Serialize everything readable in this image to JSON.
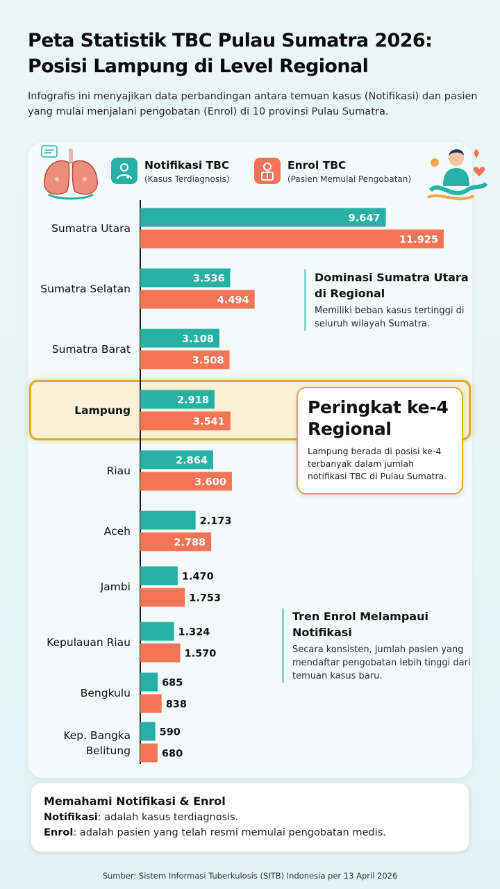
{
  "title": "Peta Statistik TBC Pulau Sumatra 2026: Posisi Lampung di Level Regional",
  "subtitle": "Infografis ini menyajikan data perbandingan antara temuan kasus (Notifikasi) dan pasien yang mulai menjalani pengobatan (Enrol) di 10 provinsi Pulau Sumatra.",
  "legend": {
    "notif_title": "Notifikasi TBC",
    "notif_sub": "(Kasus Terdiagnosis)",
    "enrol_title": "Enrol TBC",
    "enrol_sub": "(Pasien Memulai Pengobatan)"
  },
  "colors": {
    "notifikasi": "#27b1a4",
    "enrol": "#f47555",
    "highlight": "#d9a931"
  },
  "chart_data": {
    "type": "bar",
    "orientation": "horizontal",
    "categories": [
      "Sumatra Utara",
      "Sumatra Selatan",
      "Sumatra Barat",
      "Lampung",
      "Riau",
      "Aceh",
      "Jambi",
      "Kepulauan Riau",
      "Bengkulu",
      "Kep. Bangka Belitung"
    ],
    "series": [
      {
        "name": "Notifikasi TBC",
        "values": [
          9647,
          3536,
          3108,
          2918,
          2864,
          2173,
          1470,
          1324,
          685,
          590
        ],
        "labels": [
          "9.647",
          "3.536",
          "3.108",
          "2.918",
          "2.864",
          "2.173",
          "1.470",
          "1.324",
          "685",
          "590"
        ]
      },
      {
        "name": "Enrol TBC",
        "values": [
          11925,
          4494,
          3508,
          3541,
          3600,
          2788,
          1753,
          1570,
          838,
          680
        ],
        "labels": [
          "11.925",
          "4.494",
          "3.508",
          "3.541",
          "3.600",
          "2.788",
          "1.753",
          "1.570",
          "838",
          "680"
        ]
      }
    ],
    "highlight_category": "Lampung",
    "xlim": [
      0,
      11925
    ],
    "grid": false
  },
  "notes": {
    "dominasi_title": "Dominasi Sumatra Utara di Regional",
    "dominasi_text": "Memiliki beban kasus tertinggi di seluruh wilayah Sumatra.",
    "tren_title": "Tren Enrol Melampaui Notifikasi",
    "tren_text": "Secara konsisten, jumlah pasien yang mendaftar pengobatan lebih tinggi dari temuan kasus baru."
  },
  "rank": {
    "title": "Peringkat ke-4 Regional",
    "text": "Lampung berada di posisi ke-4 terbanyak dalam jumlah notifikasi TBC di Pulau Sumatra."
  },
  "info": {
    "title": "Memahami Notifikasi & Enrol",
    "notif_term": "Notifikasi",
    "notif_def": ": adalah kasus terdiagnosis.",
    "enrol_term": "Enrol",
    "enrol_def": ": adalah pasien yang telah resmi memulai pengobatan medis."
  },
  "source": "Sumber: Sistem Informasi Tuberkulosis (SITB) Indonesia per 13 April 2026",
  "icons": {
    "lungs": "lungs-icon",
    "person": "healthy-person-icon",
    "notif": "doctor-icon",
    "enrol": "patient-icon"
  }
}
